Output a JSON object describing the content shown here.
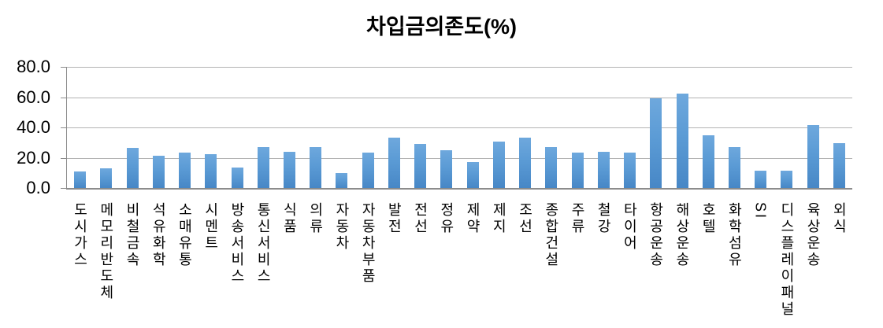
{
  "chart_data": {
    "type": "bar",
    "title": "차입금의존도(%)",
    "categories": [
      "도시가스",
      "메모리반도체",
      "비철금속",
      "석유화학",
      "소매유통",
      "시멘트",
      "방송서비스",
      "통신서비스",
      "식품",
      "의류",
      "자동차",
      "자동차부품",
      "발전",
      "전선",
      "정유",
      "제약",
      "제지",
      "조선",
      "종합건설",
      "주류",
      "철강",
      "타이어",
      "항공운송",
      "해상운송",
      "호텔",
      "화학섬유",
      "SI",
      "디스플레이패널",
      "육상운송",
      "외식"
    ],
    "values": [
      10.7,
      12.8,
      26.3,
      21.4,
      23.5,
      22.1,
      13.3,
      26.8,
      24.0,
      27.0,
      9.9,
      23.5,
      33.5,
      29.1,
      24.9,
      17.1,
      30.9,
      33.5,
      27.0,
      23.5,
      24.0,
      23.5,
      59.1,
      62.4,
      34.8,
      27.0,
      11.4,
      11.4,
      41.8,
      29.6
    ],
    "xlabel": "",
    "ylabel": "",
    "ylim": [
      0,
      80
    ],
    "yticks": [
      0,
      20,
      40,
      60,
      80
    ],
    "ytick_labels_top_down": [
      "80.0",
      "60.0",
      "40.0",
      "20.0",
      "0.0"
    ],
    "grid": true,
    "legend": false,
    "bar_color": "#5b9bd5",
    "gridline_color": "#b3b3b3",
    "axis_color": "#8c8c8c",
    "text_color": "#000000",
    "background_color": "#ffffff"
  }
}
